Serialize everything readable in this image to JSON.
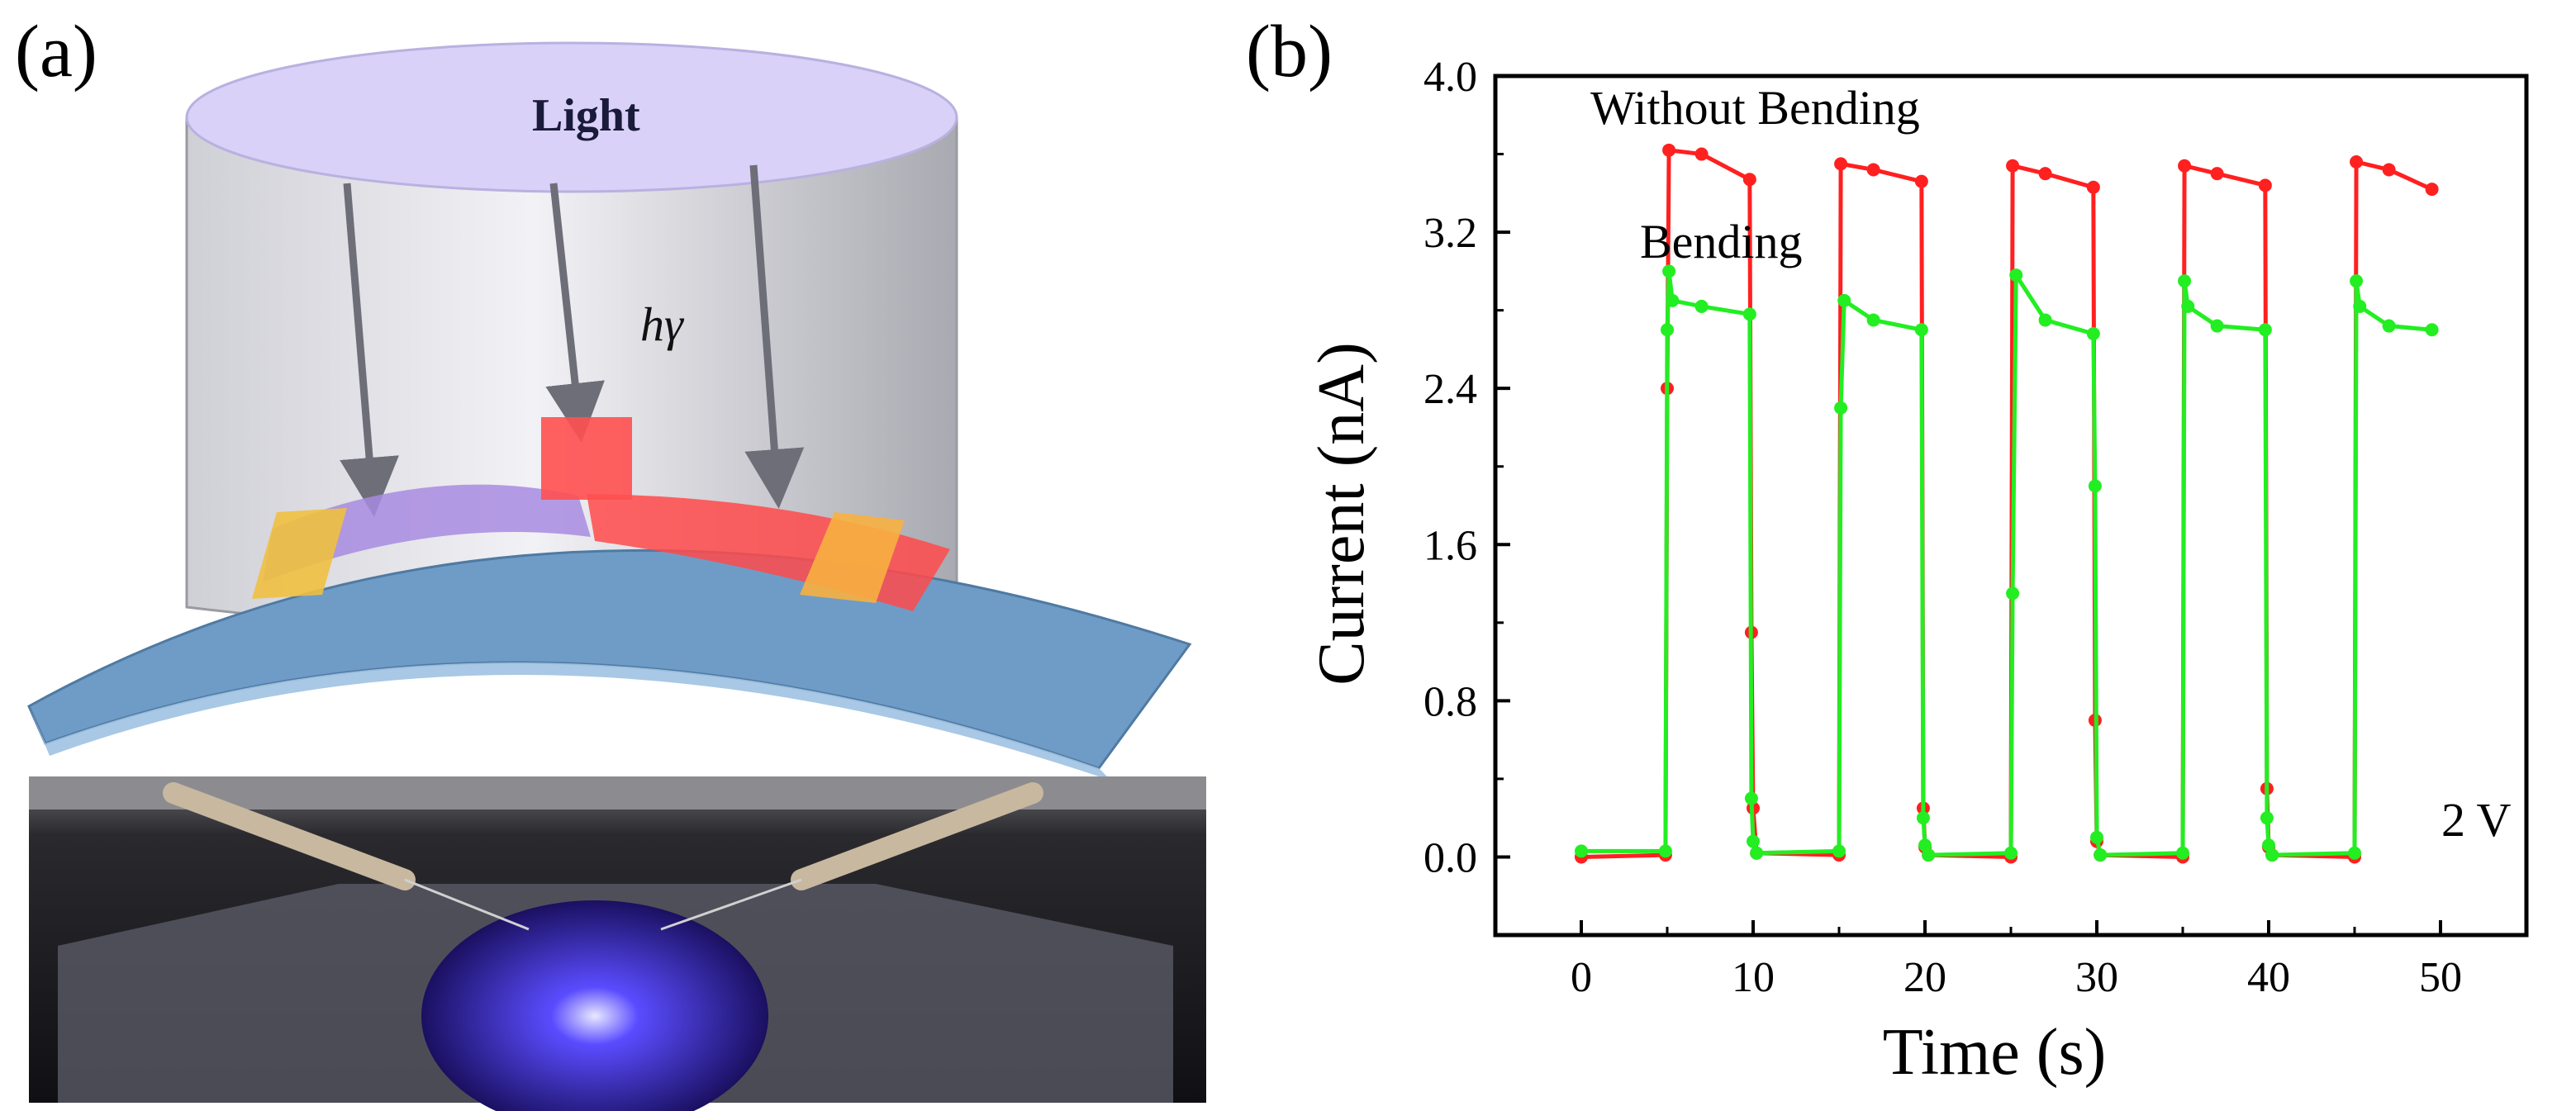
{
  "panel_a": {
    "label": "(a)",
    "light_label": "Light",
    "photon_label": "hγ"
  },
  "panel_b": {
    "label": "(b)"
  },
  "colors": {
    "without_bending": "#ff2020",
    "bending": "#22ee22",
    "axis": "#000000",
    "cylinder_top": "#d9d1f7",
    "substrate": "#6f9cc6"
  },
  "chart_data": {
    "type": "line",
    "xlabel": "Time (s)",
    "ylabel": "Current (nA)",
    "xlim": [
      -5,
      55
    ],
    "ylim": [
      -0.4,
      4.0
    ],
    "xticks": [
      0,
      10,
      20,
      30,
      40,
      50
    ],
    "yticks": [
      0.0,
      0.8,
      1.6,
      2.4,
      3.2,
      4.0
    ],
    "ytick_labels": [
      "0.0",
      "0.8",
      "1.6",
      "2.4",
      "3.2",
      "4.0"
    ],
    "grid": false,
    "annotations": {
      "without_bending": "Without Bending",
      "bending": "Bending",
      "bias": "2 V"
    },
    "series": [
      {
        "name": "Without Bending",
        "color": "#ff2020",
        "x": [
          0,
          4.9,
          5.0,
          5.1,
          7.0,
          9.8,
          9.9,
          10.0,
          10.2,
          15.0,
          15.1,
          17.0,
          19.8,
          19.9,
          20.0,
          20.2,
          25.0,
          25.1,
          27.0,
          29.8,
          29.9,
          30.0,
          30.2,
          35.0,
          35.1,
          37.0,
          39.8,
          39.9,
          40.0,
          40.2,
          45.0,
          45.1,
          47.0,
          49.5
        ],
        "y": [
          0.0,
          0.01,
          2.4,
          3.62,
          3.6,
          3.47,
          1.15,
          0.25,
          0.02,
          0.01,
          3.55,
          3.52,
          3.46,
          0.25,
          0.05,
          0.01,
          0.0,
          3.54,
          3.5,
          3.43,
          0.7,
          0.08,
          0.01,
          0.0,
          3.54,
          3.5,
          3.44,
          0.35,
          0.05,
          0.01,
          0.0,
          3.56,
          3.52,
          3.42
        ]
      },
      {
        "name": "Bending",
        "color": "#22ee22",
        "x": [
          0,
          4.9,
          5.0,
          5.1,
          5.3,
          7.0,
          9.8,
          9.9,
          10.0,
          10.2,
          15.0,
          15.1,
          15.3,
          17.0,
          19.8,
          19.9,
          20.0,
          20.2,
          25.0,
          25.1,
          25.3,
          27.0,
          29.8,
          29.9,
          30.0,
          30.2,
          35.0,
          35.1,
          35.3,
          37.0,
          39.8,
          39.9,
          40.0,
          40.2,
          45.0,
          45.1,
          45.3,
          47.0,
          49.5
        ],
        "y": [
          0.03,
          0.03,
          2.7,
          3.0,
          2.85,
          2.82,
          2.78,
          0.3,
          0.08,
          0.02,
          0.03,
          2.3,
          2.85,
          2.75,
          2.7,
          0.2,
          0.06,
          0.01,
          0.02,
          1.35,
          2.98,
          2.75,
          2.68,
          1.9,
          0.1,
          0.01,
          0.02,
          2.95,
          2.82,
          2.72,
          2.7,
          0.2,
          0.06,
          0.01,
          0.02,
          2.95,
          2.82,
          2.72,
          2.7
        ]
      }
    ]
  }
}
